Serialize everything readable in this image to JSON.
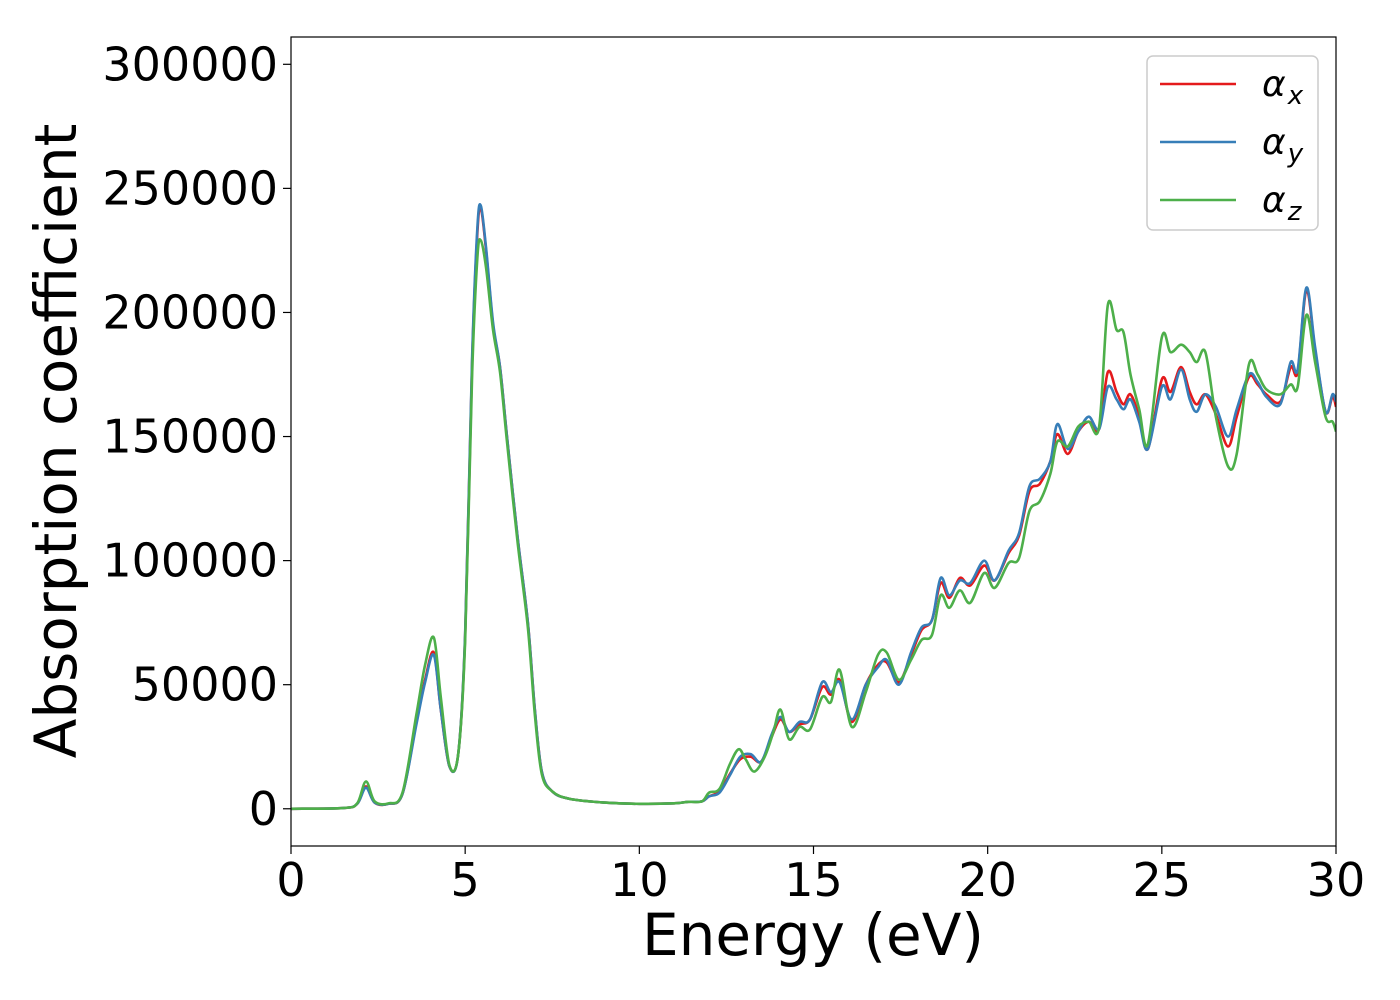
{
  "chart_data": {
    "type": "line",
    "title": "",
    "xlabel": "Energy (eV)",
    "ylabel": "Absorption coefficient",
    "xlim": [
      0,
      30
    ],
    "ylim": [
      -15000,
      311000
    ],
    "xticks": [
      0,
      5,
      10,
      15,
      20,
      25,
      30
    ],
    "xtick_labels": [
      "0",
      "5",
      "10",
      "15",
      "20",
      "25",
      "30"
    ],
    "yticks": [
      0,
      50000,
      100000,
      150000,
      200000,
      250000,
      300000
    ],
    "ytick_labels": [
      "0",
      "50000",
      "100000",
      "150000",
      "200000",
      "250000",
      "300000"
    ],
    "grid": false,
    "legend_position": "top-right",
    "series": [
      {
        "name": "α",
        "subscript": "x",
        "color": "#e41a1c",
        "points": [
          [
            0,
            0
          ],
          [
            1.5,
            300
          ],
          [
            1.9,
            2000
          ],
          [
            2.15,
            9000
          ],
          [
            2.4,
            2500
          ],
          [
            2.8,
            2000
          ],
          [
            3.2,
            6000
          ],
          [
            3.6,
            35000
          ],
          [
            3.85,
            52000
          ],
          [
            4.1,
            63000
          ],
          [
            4.3,
            40000
          ],
          [
            4.55,
            17000
          ],
          [
            4.8,
            22000
          ],
          [
            5.0,
            70000
          ],
          [
            5.2,
            180000
          ],
          [
            5.35,
            232000
          ],
          [
            5.45,
            242000
          ],
          [
            5.6,
            225000
          ],
          [
            5.8,
            195000
          ],
          [
            6.0,
            178000
          ],
          [
            6.2,
            150000
          ],
          [
            6.5,
            110000
          ],
          [
            6.8,
            75000
          ],
          [
            7.0,
            40000
          ],
          [
            7.2,
            15000
          ],
          [
            7.5,
            7000
          ],
          [
            8.0,
            4000
          ],
          [
            9.0,
            2500
          ],
          [
            10.0,
            2000
          ],
          [
            11.0,
            2200
          ],
          [
            11.4,
            2800
          ],
          [
            11.8,
            3000
          ],
          [
            12.0,
            5000
          ],
          [
            12.3,
            7000
          ],
          [
            12.6,
            14000
          ],
          [
            12.9,
            20000
          ],
          [
            13.2,
            21000
          ],
          [
            13.5,
            19000
          ],
          [
            13.8,
            29000
          ],
          [
            14.05,
            36000
          ],
          [
            14.3,
            31000
          ],
          [
            14.6,
            34000
          ],
          [
            14.9,
            36000
          ],
          [
            15.25,
            49000
          ],
          [
            15.5,
            46000
          ],
          [
            15.75,
            52000
          ],
          [
            16.1,
            35000
          ],
          [
            16.5,
            50000
          ],
          [
            16.85,
            58000
          ],
          [
            17.1,
            59000
          ],
          [
            17.45,
            51000
          ],
          [
            17.8,
            62000
          ],
          [
            18.1,
            72000
          ],
          [
            18.4,
            76000
          ],
          [
            18.65,
            91000
          ],
          [
            18.9,
            85000
          ],
          [
            19.2,
            93000
          ],
          [
            19.5,
            90000
          ],
          [
            19.9,
            98000
          ],
          [
            20.2,
            92000
          ],
          [
            20.6,
            103000
          ],
          [
            20.9,
            110000
          ],
          [
            21.2,
            128000
          ],
          [
            21.5,
            131000
          ],
          [
            21.8,
            140000
          ],
          [
            22.0,
            151000
          ],
          [
            22.3,
            143000
          ],
          [
            22.6,
            152000
          ],
          [
            22.9,
            156000
          ],
          [
            23.2,
            153000
          ],
          [
            23.45,
            176000
          ],
          [
            23.7,
            168000
          ],
          [
            23.9,
            163000
          ],
          [
            24.1,
            167000
          ],
          [
            24.35,
            158000
          ],
          [
            24.6,
            145000
          ],
          [
            25.0,
            173000
          ],
          [
            25.25,
            168000
          ],
          [
            25.55,
            178000
          ],
          [
            25.8,
            168000
          ],
          [
            26.0,
            163000
          ],
          [
            26.25,
            167000
          ],
          [
            26.55,
            159000
          ],
          [
            26.9,
            146000
          ],
          [
            27.15,
            158000
          ],
          [
            27.5,
            174000
          ],
          [
            27.75,
            171000
          ],
          [
            28.0,
            167000
          ],
          [
            28.4,
            164000
          ],
          [
            28.7,
            178000
          ],
          [
            28.9,
            176000
          ],
          [
            29.15,
            209000
          ],
          [
            29.4,
            185000
          ],
          [
            29.7,
            160000
          ],
          [
            29.9,
            166000
          ],
          [
            30.0,
            162000
          ]
        ]
      },
      {
        "name": "α",
        "subscript": "y",
        "color": "#377eb8",
        "points": [
          [
            0,
            0
          ],
          [
            1.5,
            300
          ],
          [
            1.9,
            2000
          ],
          [
            2.15,
            8500
          ],
          [
            2.4,
            2500
          ],
          [
            2.8,
            2000
          ],
          [
            3.2,
            6000
          ],
          [
            3.6,
            34000
          ],
          [
            3.85,
            51000
          ],
          [
            4.1,
            62000
          ],
          [
            4.3,
            40000
          ],
          [
            4.55,
            17000
          ],
          [
            4.8,
            22000
          ],
          [
            5.0,
            71000
          ],
          [
            5.2,
            182000
          ],
          [
            5.35,
            234000
          ],
          [
            5.45,
            243000
          ],
          [
            5.6,
            226000
          ],
          [
            5.8,
            196000
          ],
          [
            6.0,
            178000
          ],
          [
            6.2,
            150000
          ],
          [
            6.5,
            110000
          ],
          [
            6.8,
            75000
          ],
          [
            7.0,
            40000
          ],
          [
            7.2,
            15000
          ],
          [
            7.5,
            7000
          ],
          [
            8.0,
            4000
          ],
          [
            9.0,
            2500
          ],
          [
            10.0,
            2000
          ],
          [
            11.0,
            2200
          ],
          [
            11.4,
            2800
          ],
          [
            11.8,
            3000
          ],
          [
            12.0,
            5000
          ],
          [
            12.3,
            6500
          ],
          [
            12.6,
            13500
          ],
          [
            12.9,
            21000
          ],
          [
            13.2,
            22000
          ],
          [
            13.5,
            19000
          ],
          [
            13.8,
            30000
          ],
          [
            14.05,
            37000
          ],
          [
            14.3,
            31000
          ],
          [
            14.6,
            35000
          ],
          [
            14.9,
            36000
          ],
          [
            15.25,
            51000
          ],
          [
            15.5,
            47000
          ],
          [
            15.75,
            51000
          ],
          [
            16.1,
            36000
          ],
          [
            16.5,
            50000
          ],
          [
            16.85,
            57000
          ],
          [
            17.1,
            60000
          ],
          [
            17.45,
            50000
          ],
          [
            17.8,
            63000
          ],
          [
            18.1,
            73000
          ],
          [
            18.4,
            76000
          ],
          [
            18.65,
            93000
          ],
          [
            18.9,
            86000
          ],
          [
            19.2,
            92000
          ],
          [
            19.5,
            91000
          ],
          [
            19.9,
            100000
          ],
          [
            20.2,
            92000
          ],
          [
            20.6,
            104000
          ],
          [
            20.9,
            111000
          ],
          [
            21.2,
            130000
          ],
          [
            21.5,
            133000
          ],
          [
            21.8,
            140000
          ],
          [
            22.0,
            155000
          ],
          [
            22.3,
            145000
          ],
          [
            22.6,
            152000
          ],
          [
            22.9,
            158000
          ],
          [
            23.2,
            153000
          ],
          [
            23.45,
            170000
          ],
          [
            23.7,
            165000
          ],
          [
            23.9,
            161000
          ],
          [
            24.1,
            165000
          ],
          [
            24.35,
            156000
          ],
          [
            24.6,
            145000
          ],
          [
            25.0,
            170000
          ],
          [
            25.25,
            165000
          ],
          [
            25.55,
            177000
          ],
          [
            25.8,
            165000
          ],
          [
            26.0,
            160000
          ],
          [
            26.25,
            167000
          ],
          [
            26.55,
            162000
          ],
          [
            26.9,
            150000
          ],
          [
            27.15,
            161000
          ],
          [
            27.5,
            175000
          ],
          [
            27.75,
            172000
          ],
          [
            28.0,
            166000
          ],
          [
            28.4,
            163000
          ],
          [
            28.7,
            180000
          ],
          [
            28.9,
            177000
          ],
          [
            29.15,
            210000
          ],
          [
            29.4,
            186000
          ],
          [
            29.7,
            160000
          ],
          [
            29.9,
            167000
          ],
          [
            30.0,
            164000
          ]
        ]
      },
      {
        "name": "α",
        "subscript": "z",
        "color": "#4daf4a",
        "points": [
          [
            0,
            0
          ],
          [
            1.5,
            300
          ],
          [
            1.9,
            2200
          ],
          [
            2.15,
            11000
          ],
          [
            2.4,
            3000
          ],
          [
            2.8,
            2200
          ],
          [
            3.2,
            6500
          ],
          [
            3.6,
            38000
          ],
          [
            3.85,
            58000
          ],
          [
            4.1,
            69000
          ],
          [
            4.3,
            45000
          ],
          [
            4.55,
            17500
          ],
          [
            4.8,
            22000
          ],
          [
            5.0,
            68000
          ],
          [
            5.2,
            175000
          ],
          [
            5.35,
            222000
          ],
          [
            5.45,
            229000
          ],
          [
            5.6,
            218000
          ],
          [
            5.8,
            193000
          ],
          [
            6.0,
            176000
          ],
          [
            6.2,
            148000
          ],
          [
            6.5,
            108000
          ],
          [
            6.8,
            73000
          ],
          [
            7.0,
            38000
          ],
          [
            7.2,
            14000
          ],
          [
            7.5,
            7000
          ],
          [
            8.0,
            4000
          ],
          [
            9.0,
            2500
          ],
          [
            10.0,
            2000
          ],
          [
            11.0,
            2200
          ],
          [
            11.4,
            2800
          ],
          [
            11.8,
            3000
          ],
          [
            12.0,
            6500
          ],
          [
            12.3,
            8000
          ],
          [
            12.6,
            18000
          ],
          [
            12.85,
            24000
          ],
          [
            13.05,
            20000
          ],
          [
            13.3,
            15000
          ],
          [
            13.6,
            21000
          ],
          [
            13.85,
            31000
          ],
          [
            14.05,
            40000
          ],
          [
            14.3,
            28000
          ],
          [
            14.6,
            33000
          ],
          [
            14.9,
            32000
          ],
          [
            15.25,
            45000
          ],
          [
            15.5,
            43000
          ],
          [
            15.75,
            56000
          ],
          [
            16.1,
            33000
          ],
          [
            16.5,
            47000
          ],
          [
            16.85,
            62000
          ],
          [
            17.1,
            63000
          ],
          [
            17.45,
            52000
          ],
          [
            17.8,
            60000
          ],
          [
            18.1,
            68000
          ],
          [
            18.4,
            70000
          ],
          [
            18.65,
            86000
          ],
          [
            18.9,
            81000
          ],
          [
            19.2,
            88000
          ],
          [
            19.5,
            83000
          ],
          [
            19.9,
            95000
          ],
          [
            20.2,
            89000
          ],
          [
            20.6,
            99000
          ],
          [
            20.9,
            101000
          ],
          [
            21.2,
            120000
          ],
          [
            21.5,
            124000
          ],
          [
            21.8,
            135000
          ],
          [
            22.0,
            148000
          ],
          [
            22.3,
            146000
          ],
          [
            22.6,
            154000
          ],
          [
            22.9,
            156000
          ],
          [
            23.2,
            154000
          ],
          [
            23.45,
            203000
          ],
          [
            23.7,
            193000
          ],
          [
            23.9,
            192000
          ],
          [
            24.1,
            175000
          ],
          [
            24.35,
            161000
          ],
          [
            24.6,
            147000
          ],
          [
            25.0,
            190000
          ],
          [
            25.25,
            184000
          ],
          [
            25.55,
            187000
          ],
          [
            25.8,
            184000
          ],
          [
            26.0,
            180000
          ],
          [
            26.25,
            184000
          ],
          [
            26.55,
            158000
          ],
          [
            26.9,
            138000
          ],
          [
            27.15,
            143000
          ],
          [
            27.5,
            179000
          ],
          [
            27.75,
            175000
          ],
          [
            28.0,
            169000
          ],
          [
            28.4,
            167000
          ],
          [
            28.7,
            171000
          ],
          [
            28.9,
            170000
          ],
          [
            29.15,
            199000
          ],
          [
            29.4,
            180000
          ],
          [
            29.7,
            158000
          ],
          [
            29.9,
            156000
          ],
          [
            30.0,
            152000
          ]
        ]
      }
    ]
  }
}
